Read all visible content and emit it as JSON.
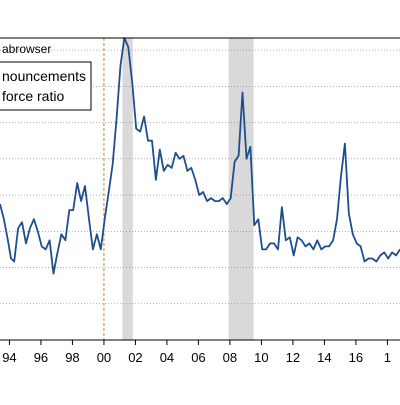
{
  "header_fragment": "abrowser",
  "legend": {
    "line1": "nouncements",
    "line2": "force ratio"
  },
  "colors": {
    "line": "#1f4e8c",
    "recession": "#d9d9d9",
    "reference": "#c8861a",
    "axis": "#000000",
    "grid": "#7f7f7f"
  },
  "chart_data": {
    "type": "line",
    "title": "",
    "xlabel": "",
    "ylabel": "",
    "xlim": [
      1993.4,
      2018.8
    ],
    "ylim": [
      0,
      1
    ],
    "x_tick_labels": [
      {
        "x": 1994,
        "label": "94"
      },
      {
        "x": 1996,
        "label": "96"
      },
      {
        "x": 1998,
        "label": "98"
      },
      {
        "x": 2000,
        "label": "00"
      },
      {
        "x": 2002,
        "label": "02"
      },
      {
        "x": 2004,
        "label": "04"
      },
      {
        "x": 2006,
        "label": "06"
      },
      {
        "x": 2008,
        "label": "08"
      },
      {
        "x": 2010,
        "label": "10"
      },
      {
        "x": 2012,
        "label": "12"
      },
      {
        "x": 2014,
        "label": "14"
      },
      {
        "x": 2016,
        "label": "16"
      },
      {
        "x": 2018,
        "label": "1"
      }
    ],
    "y_gridlines": [
      0.12,
      0.24,
      0.36,
      0.48,
      0.6,
      0.72,
      0.84,
      0.96
    ],
    "recessions": [
      [
        2001.17,
        2001.83
      ],
      [
        2007.92,
        2009.5
      ]
    ],
    "reference_line_x": 2000.0,
    "series": [
      {
        "points": [
          [
            1993.4,
            0.45
          ],
          [
            1993.65,
            0.4
          ],
          [
            1993.9,
            0.33
          ],
          [
            1994.1,
            0.27
          ],
          [
            1994.3,
            0.26
          ],
          [
            1994.55,
            0.37
          ],
          [
            1994.8,
            0.39
          ],
          [
            1995.05,
            0.32
          ],
          [
            1995.3,
            0.37
          ],
          [
            1995.55,
            0.4
          ],
          [
            1995.8,
            0.36
          ],
          [
            1996.05,
            0.31
          ],
          [
            1996.3,
            0.3
          ],
          [
            1996.55,
            0.33
          ],
          [
            1996.8,
            0.22
          ],
          [
            1997.05,
            0.29
          ],
          [
            1997.3,
            0.35
          ],
          [
            1997.55,
            0.33
          ],
          [
            1997.8,
            0.43
          ],
          [
            1998.05,
            0.43
          ],
          [
            1998.3,
            0.52
          ],
          [
            1998.55,
            0.46
          ],
          [
            1998.8,
            0.51
          ],
          [
            1999.05,
            0.4
          ],
          [
            1999.3,
            0.3
          ],
          [
            1999.55,
            0.35
          ],
          [
            1999.8,
            0.3
          ],
          [
            2000.05,
            0.4
          ],
          [
            2000.3,
            0.49
          ],
          [
            2000.55,
            0.58
          ],
          [
            2000.8,
            0.73
          ],
          [
            2001.05,
            0.91
          ],
          [
            2001.3,
            1.0
          ],
          [
            2001.55,
            0.97
          ],
          [
            2001.8,
            0.85
          ],
          [
            2002.05,
            0.7
          ],
          [
            2002.3,
            0.69
          ],
          [
            2002.55,
            0.74
          ],
          [
            2002.8,
            0.66
          ],
          [
            2003.05,
            0.66
          ],
          [
            2003.3,
            0.53
          ],
          [
            2003.55,
            0.63
          ],
          [
            2003.8,
            0.56
          ],
          [
            2004.05,
            0.58
          ],
          [
            2004.3,
            0.57
          ],
          [
            2004.55,
            0.62
          ],
          [
            2004.8,
            0.6
          ],
          [
            2005.05,
            0.61
          ],
          [
            2005.3,
            0.56
          ],
          [
            2005.55,
            0.57
          ],
          [
            2005.8,
            0.53
          ],
          [
            2006.05,
            0.48
          ],
          [
            2006.3,
            0.49
          ],
          [
            2006.55,
            0.46
          ],
          [
            2006.8,
            0.47
          ],
          [
            2007.05,
            0.46
          ],
          [
            2007.3,
            0.46
          ],
          [
            2007.55,
            0.47
          ],
          [
            2007.8,
            0.45
          ],
          [
            2008.05,
            0.47
          ],
          [
            2008.3,
            0.59
          ],
          [
            2008.55,
            0.61
          ],
          [
            2008.8,
            0.82
          ],
          [
            2009.05,
            0.6
          ],
          [
            2009.3,
            0.64
          ],
          [
            2009.55,
            0.38
          ],
          [
            2009.8,
            0.4
          ],
          [
            2010.05,
            0.3
          ],
          [
            2010.3,
            0.3
          ],
          [
            2010.55,
            0.32
          ],
          [
            2010.8,
            0.32
          ],
          [
            2011.05,
            0.3
          ],
          [
            2011.3,
            0.44
          ],
          [
            2011.55,
            0.33
          ],
          [
            2011.8,
            0.34
          ],
          [
            2012.05,
            0.28
          ],
          [
            2012.3,
            0.34
          ],
          [
            2012.55,
            0.33
          ],
          [
            2012.8,
            0.31
          ],
          [
            2013.05,
            0.32
          ],
          [
            2013.3,
            0.3
          ],
          [
            2013.55,
            0.33
          ],
          [
            2013.8,
            0.3
          ],
          [
            2014.05,
            0.31
          ],
          [
            2014.3,
            0.31
          ],
          [
            2014.55,
            0.33
          ],
          [
            2014.8,
            0.4
          ],
          [
            2015.05,
            0.54
          ],
          [
            2015.3,
            0.65
          ],
          [
            2015.55,
            0.42
          ],
          [
            2015.8,
            0.35
          ],
          [
            2016.05,
            0.32
          ],
          [
            2016.3,
            0.31
          ],
          [
            2016.55,
            0.26
          ],
          [
            2016.8,
            0.27
          ],
          [
            2017.05,
            0.27
          ],
          [
            2017.3,
            0.26
          ],
          [
            2017.55,
            0.28
          ],
          [
            2017.8,
            0.29
          ],
          [
            2018.05,
            0.27
          ],
          [
            2018.3,
            0.29
          ],
          [
            2018.55,
            0.28
          ],
          [
            2018.8,
            0.3
          ]
        ]
      }
    ]
  }
}
